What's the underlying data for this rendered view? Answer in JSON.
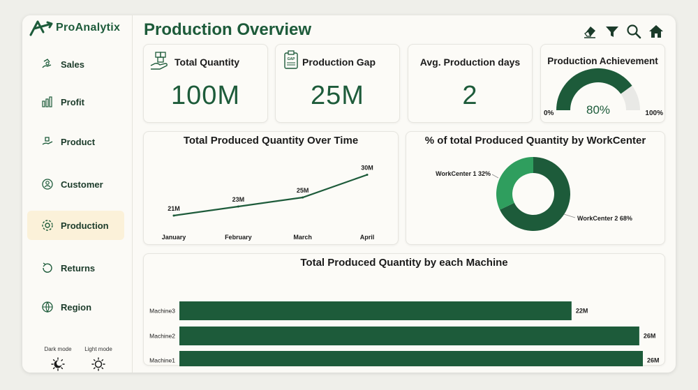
{
  "brand": {
    "name": "ProAnalytix"
  },
  "colors": {
    "primary": "#1d5b3a",
    "accent_light": "#2f9e5e",
    "gauge_track": "#e9e9e6",
    "active_bg": "#fbf1d9"
  },
  "sidebar": {
    "items": [
      {
        "label": "Sales",
        "icon": "sales-icon",
        "active": false
      },
      {
        "label": "Profit",
        "icon": "profit-icon",
        "active": false
      },
      {
        "label": "Product",
        "icon": "product-icon",
        "active": false
      },
      {
        "label": "Customer",
        "icon": "customer-icon",
        "active": false
      },
      {
        "label": "Production",
        "icon": "production-icon",
        "active": true
      },
      {
        "label": "Returns",
        "icon": "returns-icon",
        "active": false
      },
      {
        "label": "Region",
        "icon": "region-icon",
        "active": false
      }
    ],
    "dark_mode_label": "Dark mode",
    "light_mode_label": "Light mode"
  },
  "header": {
    "title": "Production Overview",
    "icons": [
      "eraser-icon",
      "filter-icon",
      "search-icon",
      "home-icon"
    ]
  },
  "kpis": {
    "total_quantity": {
      "title": "Total Quantity",
      "value": "100M"
    },
    "production_gap": {
      "title": "Production Gap",
      "value": "25M"
    },
    "avg_days": {
      "title": "Avg. Production days",
      "value": "2"
    },
    "achievement": {
      "title": "Production Achievement",
      "value": "80%",
      "min": "0%",
      "max": "100%",
      "fraction": 0.8
    }
  },
  "chart_data": [
    {
      "type": "line",
      "title": "Total Produced Quantity Over Time",
      "categories": [
        "January",
        "February",
        "March",
        "April"
      ],
      "values": [
        21,
        23,
        25,
        30
      ],
      "labels": [
        "21M",
        "23M",
        "25M",
        "30M"
      ],
      "ylim": [
        19,
        31
      ]
    },
    {
      "type": "pie",
      "title": "% of total Produced Quantity by WorkCenter",
      "slices": [
        {
          "name": "WorkCenter 2",
          "value": 68,
          "label": "WorkCenter 2 68%",
          "color": "#1d5b3a"
        },
        {
          "name": "WorkCenter 1",
          "value": 32,
          "label": "WorkCenter 1 32%",
          "color": "#2f9e5e"
        }
      ]
    },
    {
      "type": "bar",
      "orientation": "horizontal",
      "title": "Total Produced Quantity by each Machine",
      "categories": [
        "Machine3",
        "Machine2",
        "Machine1"
      ],
      "values": [
        22,
        25.8,
        26
      ],
      "labels": [
        "22M",
        "26M",
        "26M"
      ],
      "xlim": [
        0,
        26
      ]
    }
  ]
}
